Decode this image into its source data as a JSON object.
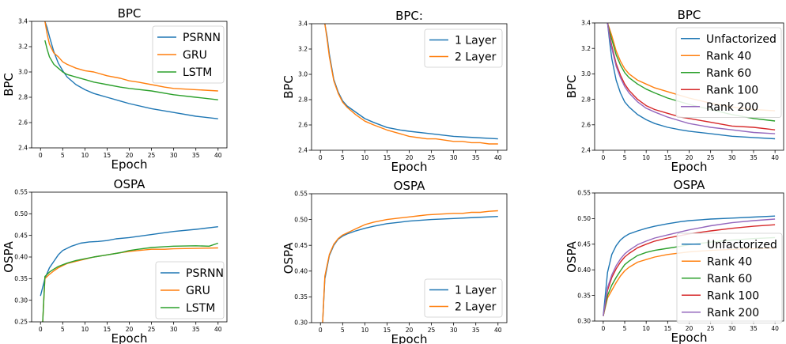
{
  "colors": {
    "blue": "#1f77b4",
    "orange": "#ff7f0e",
    "green": "#2ca02c",
    "red": "#d62728",
    "purple": "#9467bd"
  },
  "chart_data": [
    {
      "type": "line",
      "title": "BPC",
      "xlabel": "Epoch",
      "ylabel": "BPC",
      "xlim": [
        -2,
        42
      ],
      "ylim": [
        2.4,
        3.4
      ],
      "xticks": [
        0,
        5,
        10,
        15,
        20,
        25,
        30,
        35,
        40
      ],
      "yticks": [
        2.4,
        2.6,
        2.8,
        3.0,
        3.2,
        3.4
      ],
      "ytick_labels": [
        "2.4",
        "2.6",
        "2.8",
        "3.0",
        "3.2",
        "3.4"
      ],
      "grid": false,
      "legend_position": "top-right",
      "series": [
        {
          "name": "PSRNN",
          "color": "#1f77b4",
          "x": [
            1,
            1.5,
            2,
            3,
            4,
            5,
            6,
            8,
            10,
            12,
            15,
            18,
            20,
            25,
            30,
            35,
            40
          ],
          "y": [
            3.4,
            3.35,
            3.28,
            3.16,
            3.07,
            3.01,
            2.96,
            2.9,
            2.86,
            2.83,
            2.8,
            2.77,
            2.75,
            2.71,
            2.68,
            2.65,
            2.63
          ]
        },
        {
          "name": "GRU",
          "color": "#ff7f0e",
          "x": [
            1,
            1.5,
            2,
            3,
            4,
            5,
            6,
            8,
            10,
            12,
            15,
            18,
            20,
            22,
            25,
            28,
            30,
            35,
            40
          ],
          "y": [
            3.4,
            3.3,
            3.22,
            3.15,
            3.12,
            3.08,
            3.06,
            3.03,
            3.01,
            3.0,
            2.97,
            2.95,
            2.93,
            2.92,
            2.9,
            2.88,
            2.87,
            2.86,
            2.85
          ]
        },
        {
          "name": "LSTM",
          "color": "#2ca02c",
          "x": [
            1,
            1.5,
            2,
            3,
            4,
            5,
            6,
            8,
            10,
            12,
            15,
            18,
            20,
            25,
            30,
            35,
            40
          ],
          "y": [
            3.25,
            3.18,
            3.12,
            3.06,
            3.03,
            3.0,
            2.98,
            2.96,
            2.94,
            2.92,
            2.9,
            2.88,
            2.87,
            2.85,
            2.82,
            2.8,
            2.78
          ]
        }
      ]
    },
    {
      "type": "line",
      "title": "BPC:",
      "xlabel": "Epoch",
      "ylabel": "BPC",
      "xlim": [
        -2,
        42
      ],
      "ylim": [
        2.4,
        3.4
      ],
      "xticks": [
        0,
        5,
        10,
        15,
        20,
        25,
        30,
        35,
        40
      ],
      "yticks": [
        2.4,
        2.6,
        2.8,
        3.0,
        3.2,
        3.4
      ],
      "ytick_labels": [
        "2.4",
        "2.6",
        "2.8",
        "3.0",
        "3.2",
        "3.4"
      ],
      "grid": false,
      "legend_position": "top-right",
      "series": [
        {
          "name": "1 Layer",
          "color": "#1f77b4",
          "x": [
            1,
            1.5,
            2,
            3,
            4,
            5,
            6,
            8,
            10,
            12,
            15,
            18,
            20,
            25,
            30,
            35,
            40
          ],
          "y": [
            3.4,
            3.3,
            3.16,
            2.96,
            2.86,
            2.79,
            2.75,
            2.7,
            2.65,
            2.62,
            2.58,
            2.56,
            2.55,
            2.53,
            2.51,
            2.5,
            2.49
          ]
        },
        {
          "name": "2 Layer",
          "color": "#ff7f0e",
          "x": [
            1,
            1.5,
            2,
            3,
            4,
            5,
            6,
            8,
            10,
            12,
            15,
            18,
            20,
            22,
            24,
            26,
            28,
            30,
            32,
            34,
            36,
            38,
            40
          ],
          "y": [
            3.4,
            3.28,
            3.14,
            2.95,
            2.85,
            2.78,
            2.74,
            2.68,
            2.63,
            2.6,
            2.56,
            2.53,
            2.51,
            2.5,
            2.49,
            2.49,
            2.48,
            2.47,
            2.47,
            2.46,
            2.46,
            2.45,
            2.45
          ]
        }
      ]
    },
    {
      "type": "line",
      "title": "BPC",
      "xlabel": "Epoch",
      "ylabel": "BPC",
      "xlim": [
        -2,
        42
      ],
      "ylim": [
        2.4,
        3.4
      ],
      "xticks": [
        0,
        5,
        10,
        15,
        20,
        25,
        30,
        35,
        40
      ],
      "yticks": [
        2.4,
        2.6,
        2.8,
        3.0,
        3.2,
        3.4
      ],
      "ytick_labels": [
        "2.4",
        "2.6",
        "2.8",
        "3.0",
        "3.2",
        "3.4"
      ],
      "grid": false,
      "legend_position": "top-right",
      "series": [
        {
          "name": "Unfactorized",
          "color": "#1f77b4",
          "x": [
            1,
            1.5,
            2,
            3,
            4,
            5,
            6,
            8,
            10,
            12,
            15,
            18,
            20,
            25,
            30,
            35,
            40
          ],
          "y": [
            3.4,
            3.25,
            3.12,
            2.95,
            2.85,
            2.78,
            2.74,
            2.68,
            2.64,
            2.61,
            2.58,
            2.56,
            2.55,
            2.53,
            2.51,
            2.5,
            2.49
          ]
        },
        {
          "name": "Rank 40",
          "color": "#ff7f0e",
          "x": [
            1,
            1.5,
            2,
            3,
            4,
            5,
            6,
            8,
            10,
            12,
            15,
            18,
            20,
            25,
            30,
            35,
            40
          ],
          "y": [
            3.4,
            3.35,
            3.3,
            3.18,
            3.1,
            3.04,
            3.0,
            2.95,
            2.92,
            2.89,
            2.86,
            2.83,
            2.81,
            2.77,
            2.74,
            2.72,
            2.71
          ]
        },
        {
          "name": "Rank 60",
          "color": "#2ca02c",
          "x": [
            1,
            1.5,
            2,
            3,
            4,
            5,
            6,
            8,
            10,
            12,
            15,
            18,
            20,
            25,
            30,
            35,
            40
          ],
          "y": [
            3.4,
            3.33,
            3.27,
            3.15,
            3.07,
            3.01,
            2.97,
            2.92,
            2.88,
            2.85,
            2.81,
            2.78,
            2.76,
            2.72,
            2.68,
            2.65,
            2.63
          ]
        },
        {
          "name": "Rank 100",
          "color": "#d62728",
          "x": [
            1,
            1.5,
            2,
            3,
            4,
            5,
            6,
            8,
            10,
            12,
            15,
            18,
            20,
            25,
            30,
            35,
            40
          ],
          "y": [
            3.4,
            3.3,
            3.22,
            3.08,
            2.99,
            2.92,
            2.87,
            2.8,
            2.75,
            2.72,
            2.69,
            2.66,
            2.65,
            2.62,
            2.59,
            2.58,
            2.56
          ]
        },
        {
          "name": "Rank 200",
          "color": "#9467bd",
          "x": [
            1,
            1.5,
            2,
            3,
            4,
            5,
            6,
            8,
            10,
            12,
            15,
            18,
            20,
            25,
            30,
            35,
            40
          ],
          "y": [
            3.4,
            3.28,
            3.2,
            3.06,
            2.97,
            2.9,
            2.85,
            2.78,
            2.73,
            2.7,
            2.66,
            2.63,
            2.61,
            2.58,
            2.56,
            2.54,
            2.53
          ]
        }
      ]
    },
    {
      "type": "line",
      "title": "OSPA",
      "xlabel": "Epoch",
      "ylabel": "OSPA",
      "xlim": [
        -2,
        42
      ],
      "ylim": [
        0.25,
        0.55
      ],
      "xticks": [
        0,
        5,
        10,
        15,
        20,
        25,
        30,
        35,
        40
      ],
      "yticks": [
        0.25,
        0.3,
        0.35,
        0.4,
        0.45,
        0.5,
        0.55
      ],
      "ytick_labels": [
        "0.25",
        "0.30",
        "0.35",
        "0.40",
        "0.45",
        "0.50",
        "0.55"
      ],
      "grid": false,
      "legend_position": "bottom-right",
      "series": [
        {
          "name": "PSRNN",
          "color": "#1f77b4",
          "x": [
            0,
            1,
            2,
            3,
            4,
            5,
            7,
            9,
            11,
            13,
            15,
            17,
            20,
            25,
            30,
            35,
            40
          ],
          "y": [
            0.31,
            0.35,
            0.375,
            0.39,
            0.405,
            0.415,
            0.425,
            0.432,
            0.435,
            0.436,
            0.438,
            0.442,
            0.445,
            0.452,
            0.459,
            0.464,
            0.47
          ]
        },
        {
          "name": "GRU",
          "color": "#ff7f0e",
          "x": [
            0.5,
            1,
            2,
            3,
            4,
            5,
            6,
            8,
            10,
            12,
            15,
            18,
            20,
            22,
            25,
            28,
            30,
            35,
            40
          ],
          "y": [
            0.25,
            0.35,
            0.36,
            0.368,
            0.375,
            0.38,
            0.385,
            0.39,
            0.395,
            0.4,
            0.405,
            0.41,
            0.413,
            0.415,
            0.418,
            0.418,
            0.419,
            0.42,
            0.421
          ]
        },
        {
          "name": "LSTM",
          "color": "#2ca02c",
          "x": [
            0.5,
            1,
            2,
            3,
            4,
            5,
            6,
            8,
            10,
            12,
            15,
            18,
            20,
            22,
            25,
            28,
            30,
            35,
            38,
            40
          ],
          "y": [
            0.25,
            0.355,
            0.365,
            0.372,
            0.378,
            0.382,
            0.386,
            0.392,
            0.396,
            0.4,
            0.405,
            0.41,
            0.415,
            0.418,
            0.422,
            0.424,
            0.425,
            0.426,
            0.425,
            0.432
          ]
        }
      ]
    },
    {
      "type": "line",
      "title": "OSPA",
      "xlabel": "Epoch",
      "ylabel": "OSPA",
      "xlim": [
        -2,
        42
      ],
      "ylim": [
        0.3,
        0.55
      ],
      "xticks": [
        0,
        5,
        10,
        15,
        20,
        25,
        30,
        35,
        40
      ],
      "yticks": [
        0.3,
        0.35,
        0.4,
        0.45,
        0.5,
        0.55
      ],
      "ytick_labels": [
        "0.30",
        "0.35",
        "0.40",
        "0.45",
        "0.50",
        "0.55"
      ],
      "grid": false,
      "legend_position": "bottom-right",
      "series": [
        {
          "name": "1 Layer",
          "color": "#1f77b4",
          "x": [
            0.5,
            1,
            2,
            3,
            4,
            5,
            6,
            8,
            10,
            12,
            15,
            18,
            20,
            25,
            30,
            35,
            40
          ],
          "y": [
            0.3,
            0.385,
            0.43,
            0.45,
            0.462,
            0.468,
            0.472,
            0.478,
            0.483,
            0.487,
            0.492,
            0.495,
            0.497,
            0.5,
            0.502,
            0.504,
            0.506
          ]
        },
        {
          "name": "2 Layer",
          "color": "#ff7f0e",
          "x": [
            0.5,
            1,
            2,
            3,
            4,
            5,
            6,
            8,
            10,
            12,
            15,
            18,
            20,
            22,
            24,
            26,
            28,
            30,
            32,
            34,
            36,
            38,
            40
          ],
          "y": [
            0.3,
            0.39,
            0.432,
            0.452,
            0.463,
            0.47,
            0.474,
            0.482,
            0.49,
            0.495,
            0.5,
            0.503,
            0.505,
            0.507,
            0.509,
            0.51,
            0.511,
            0.512,
            0.512,
            0.514,
            0.514,
            0.516,
            0.517
          ]
        }
      ]
    },
    {
      "type": "line",
      "title": "OSPA",
      "xlabel": "Epoch",
      "ylabel": "OSPA",
      "xlim": [
        -2,
        42
      ],
      "ylim": [
        0.3,
        0.55
      ],
      "xticks": [
        0,
        5,
        10,
        15,
        20,
        25,
        30,
        35,
        40
      ],
      "yticks": [
        0.3,
        0.35,
        0.4,
        0.45,
        0.5,
        0.55
      ],
      "ytick_labels": [
        "0.30",
        "0.35",
        "0.40",
        "0.45",
        "0.50",
        "0.55"
      ],
      "grid": false,
      "legend_position": "center-right",
      "series": [
        {
          "name": "Unfactorized",
          "color": "#1f77b4",
          "x": [
            0,
            1,
            2,
            3,
            4,
            5,
            6,
            8,
            10,
            12,
            15,
            18,
            20,
            25,
            30,
            35,
            40
          ],
          "y": [
            0.31,
            0.395,
            0.43,
            0.447,
            0.458,
            0.465,
            0.47,
            0.476,
            0.481,
            0.485,
            0.49,
            0.494,
            0.496,
            0.499,
            0.501,
            0.503,
            0.505
          ]
        },
        {
          "name": "Rank 40",
          "color": "#ff7f0e",
          "x": [
            0,
            1,
            2,
            3,
            4,
            5,
            6,
            8,
            10,
            12,
            15,
            18,
            20,
            25,
            30,
            35,
            40
          ],
          "y": [
            0.31,
            0.345,
            0.36,
            0.375,
            0.388,
            0.398,
            0.405,
            0.415,
            0.42,
            0.425,
            0.43,
            0.433,
            0.435,
            0.438,
            0.44,
            0.441,
            0.442
          ]
        },
        {
          "name": "Rank 60",
          "color": "#2ca02c",
          "x": [
            0,
            1,
            2,
            3,
            4,
            5,
            6,
            8,
            10,
            12,
            15,
            18,
            20,
            25,
            30,
            35,
            40
          ],
          "y": [
            0.31,
            0.35,
            0.37,
            0.385,
            0.398,
            0.41,
            0.417,
            0.428,
            0.434,
            0.438,
            0.442,
            0.446,
            0.449,
            0.454,
            0.458,
            0.461,
            0.463
          ]
        },
        {
          "name": "Rank 100",
          "color": "#d62728",
          "x": [
            0,
            1,
            2,
            3,
            4,
            5,
            6,
            8,
            10,
            12,
            15,
            18,
            20,
            25,
            30,
            35,
            40
          ],
          "y": [
            0.31,
            0.36,
            0.385,
            0.402,
            0.415,
            0.425,
            0.432,
            0.443,
            0.45,
            0.456,
            0.462,
            0.467,
            0.47,
            0.476,
            0.481,
            0.485,
            0.488
          ]
        },
        {
          "name": "Rank 200",
          "color": "#9467bd",
          "x": [
            0,
            1,
            2,
            3,
            4,
            5,
            6,
            8,
            10,
            12,
            15,
            18,
            20,
            25,
            30,
            35,
            40
          ],
          "y": [
            0.31,
            0.365,
            0.39,
            0.408,
            0.421,
            0.431,
            0.438,
            0.449,
            0.456,
            0.462,
            0.468,
            0.474,
            0.478,
            0.486,
            0.492,
            0.496,
            0.499
          ]
        }
      ]
    }
  ]
}
